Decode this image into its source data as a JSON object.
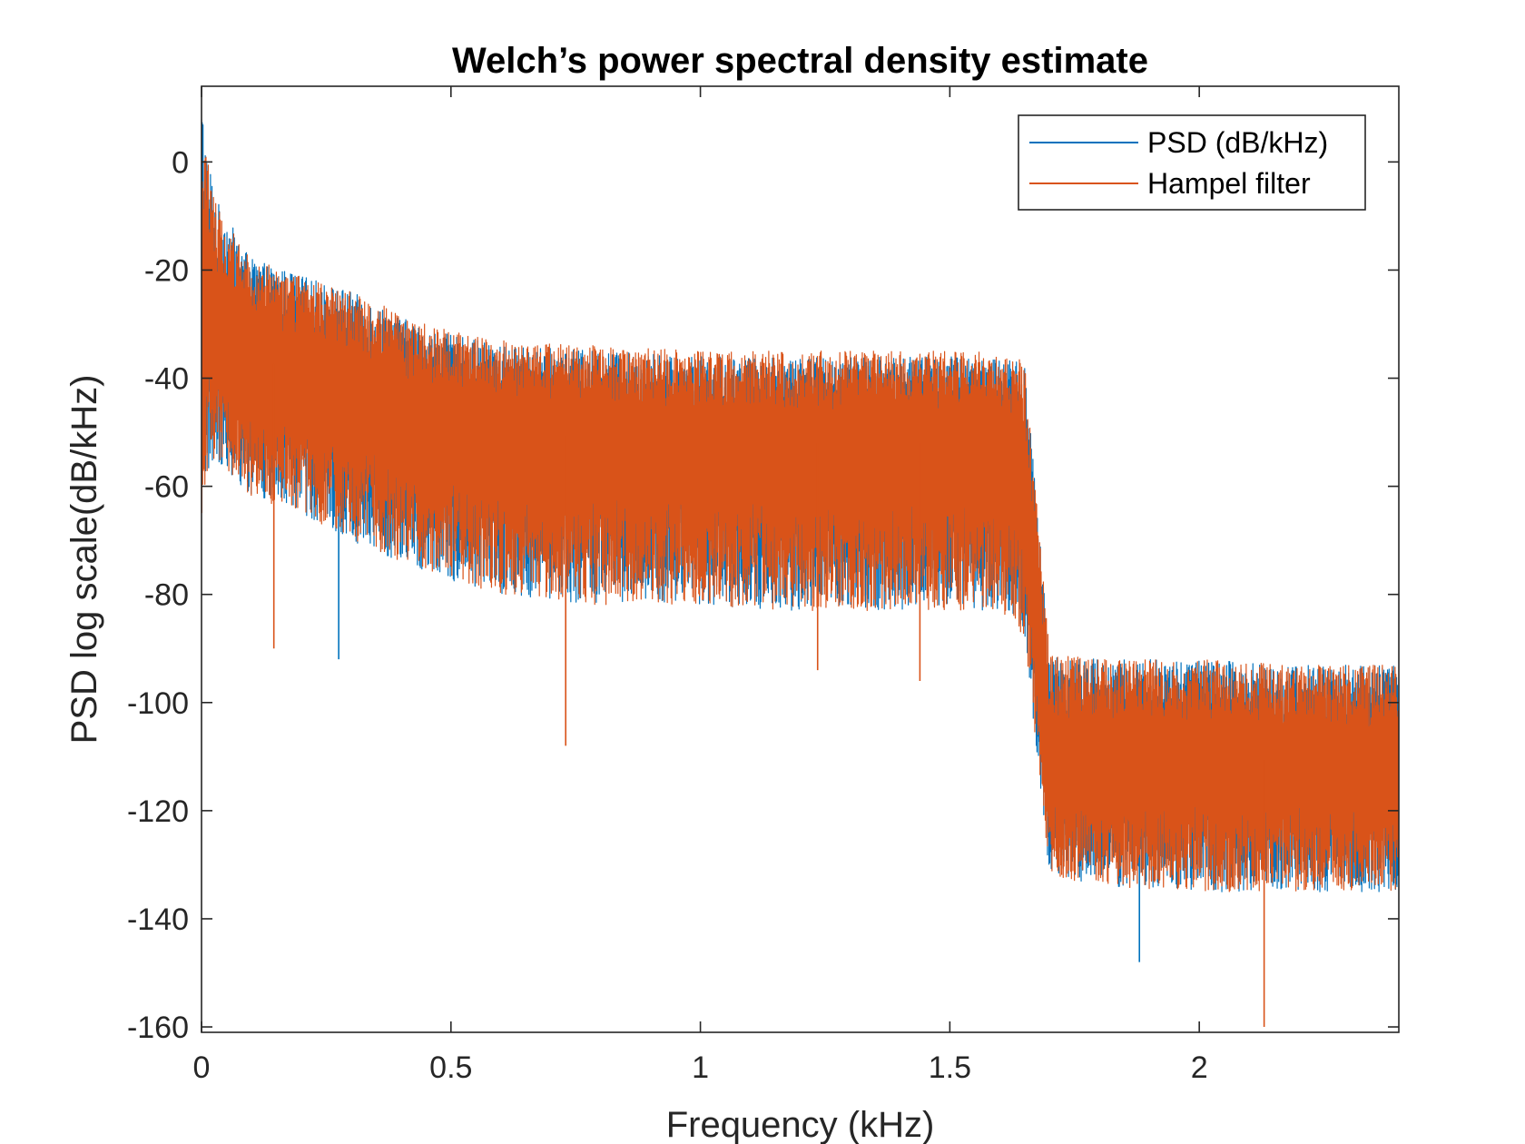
{
  "chart_data": {
    "type": "line",
    "title": "Welch’s power spectral density estimate",
    "xlabel": "Frequency (kHz)",
    "ylabel": "PSD log scale(dB/kHz)",
    "xlim": [
      0,
      2.4
    ],
    "ylim": [
      -161,
      14
    ],
    "xticks": [
      0,
      0.5,
      1,
      1.5,
      2
    ],
    "xtick_labels": [
      "0",
      "0.5",
      "1",
      "1.5",
      "2"
    ],
    "yticks": [
      0,
      -20,
      -40,
      -60,
      -80,
      -100,
      -120,
      -140,
      -160
    ],
    "ytick_labels": [
      "0",
      "-20",
      "-40",
      "-60",
      "-80",
      "-100",
      "-120",
      "-140",
      "-160"
    ],
    "grid": false,
    "legend_position": "top-right",
    "series": [
      {
        "name": "PSD (dB/kHz)",
        "color": "#0072BD",
        "envelope": {
          "x": [
            0,
            0.01,
            0.03,
            0.1,
            0.2,
            0.3,
            0.45,
            0.6,
            0.8,
            1.0,
            1.2,
            1.4,
            1.6,
            1.65,
            1.7,
            1.8,
            2.0,
            2.2,
            2.4
          ],
          "upper": [
            13,
            3,
            -7,
            -18,
            -21,
            -24,
            -31,
            -34,
            -35,
            -36,
            -36,
            -36,
            -36,
            -37,
            -91,
            -92,
            -92,
            -93,
            -93
          ],
          "median": [
            -30,
            -28,
            -30,
            -36,
            -39,
            -42,
            -48,
            -50,
            -51,
            -52,
            -52,
            -52,
            -52,
            -60,
            -110,
            -110,
            -110,
            -111,
            -111
          ],
          "lower": [
            -68,
            -58,
            -55,
            -62,
            -65,
            -70,
            -76,
            -80,
            -82,
            -82,
            -83,
            -83,
            -83,
            -88,
            -132,
            -134,
            -135,
            -135,
            -135
          ]
        },
        "outliers": [
          {
            "x": 0.275,
            "y": -92
          },
          {
            "x": 1.88,
            "y": -148
          }
        ]
      },
      {
        "name": "Hampel filter",
        "color": "#D95319",
        "envelope": {
          "x": [
            0,
            0.01,
            0.03,
            0.1,
            0.2,
            0.3,
            0.45,
            0.6,
            0.8,
            1.0,
            1.2,
            1.4,
            1.6,
            1.65,
            1.7,
            1.8,
            2.0,
            2.2,
            2.4
          ],
          "upper": [
            3,
            2,
            -8,
            -18,
            -21,
            -24,
            -30,
            -33,
            -34,
            -35,
            -35,
            -35,
            -35,
            -37,
            -91,
            -92,
            -92,
            -93,
            -93
          ],
          "median": [
            -30,
            -28,
            -30,
            -36,
            -39,
            -42,
            -48,
            -50,
            -51,
            -52,
            -52,
            -52,
            -52,
            -60,
            -110,
            -110,
            -110,
            -111,
            -111
          ],
          "lower": [
            -68,
            -58,
            -55,
            -62,
            -65,
            -70,
            -76,
            -80,
            -82,
            -82,
            -83,
            -83,
            -83,
            -88,
            -132,
            -134,
            -135,
            -135,
            -135
          ]
        },
        "outliers": [
          {
            "x": 0.145,
            "y": -90
          },
          {
            "x": 0.73,
            "y": -108
          },
          {
            "x": 1.235,
            "y": -94
          },
          {
            "x": 1.44,
            "y": -96
          },
          {
            "x": 2.13,
            "y": -160
          }
        ]
      }
    ]
  }
}
